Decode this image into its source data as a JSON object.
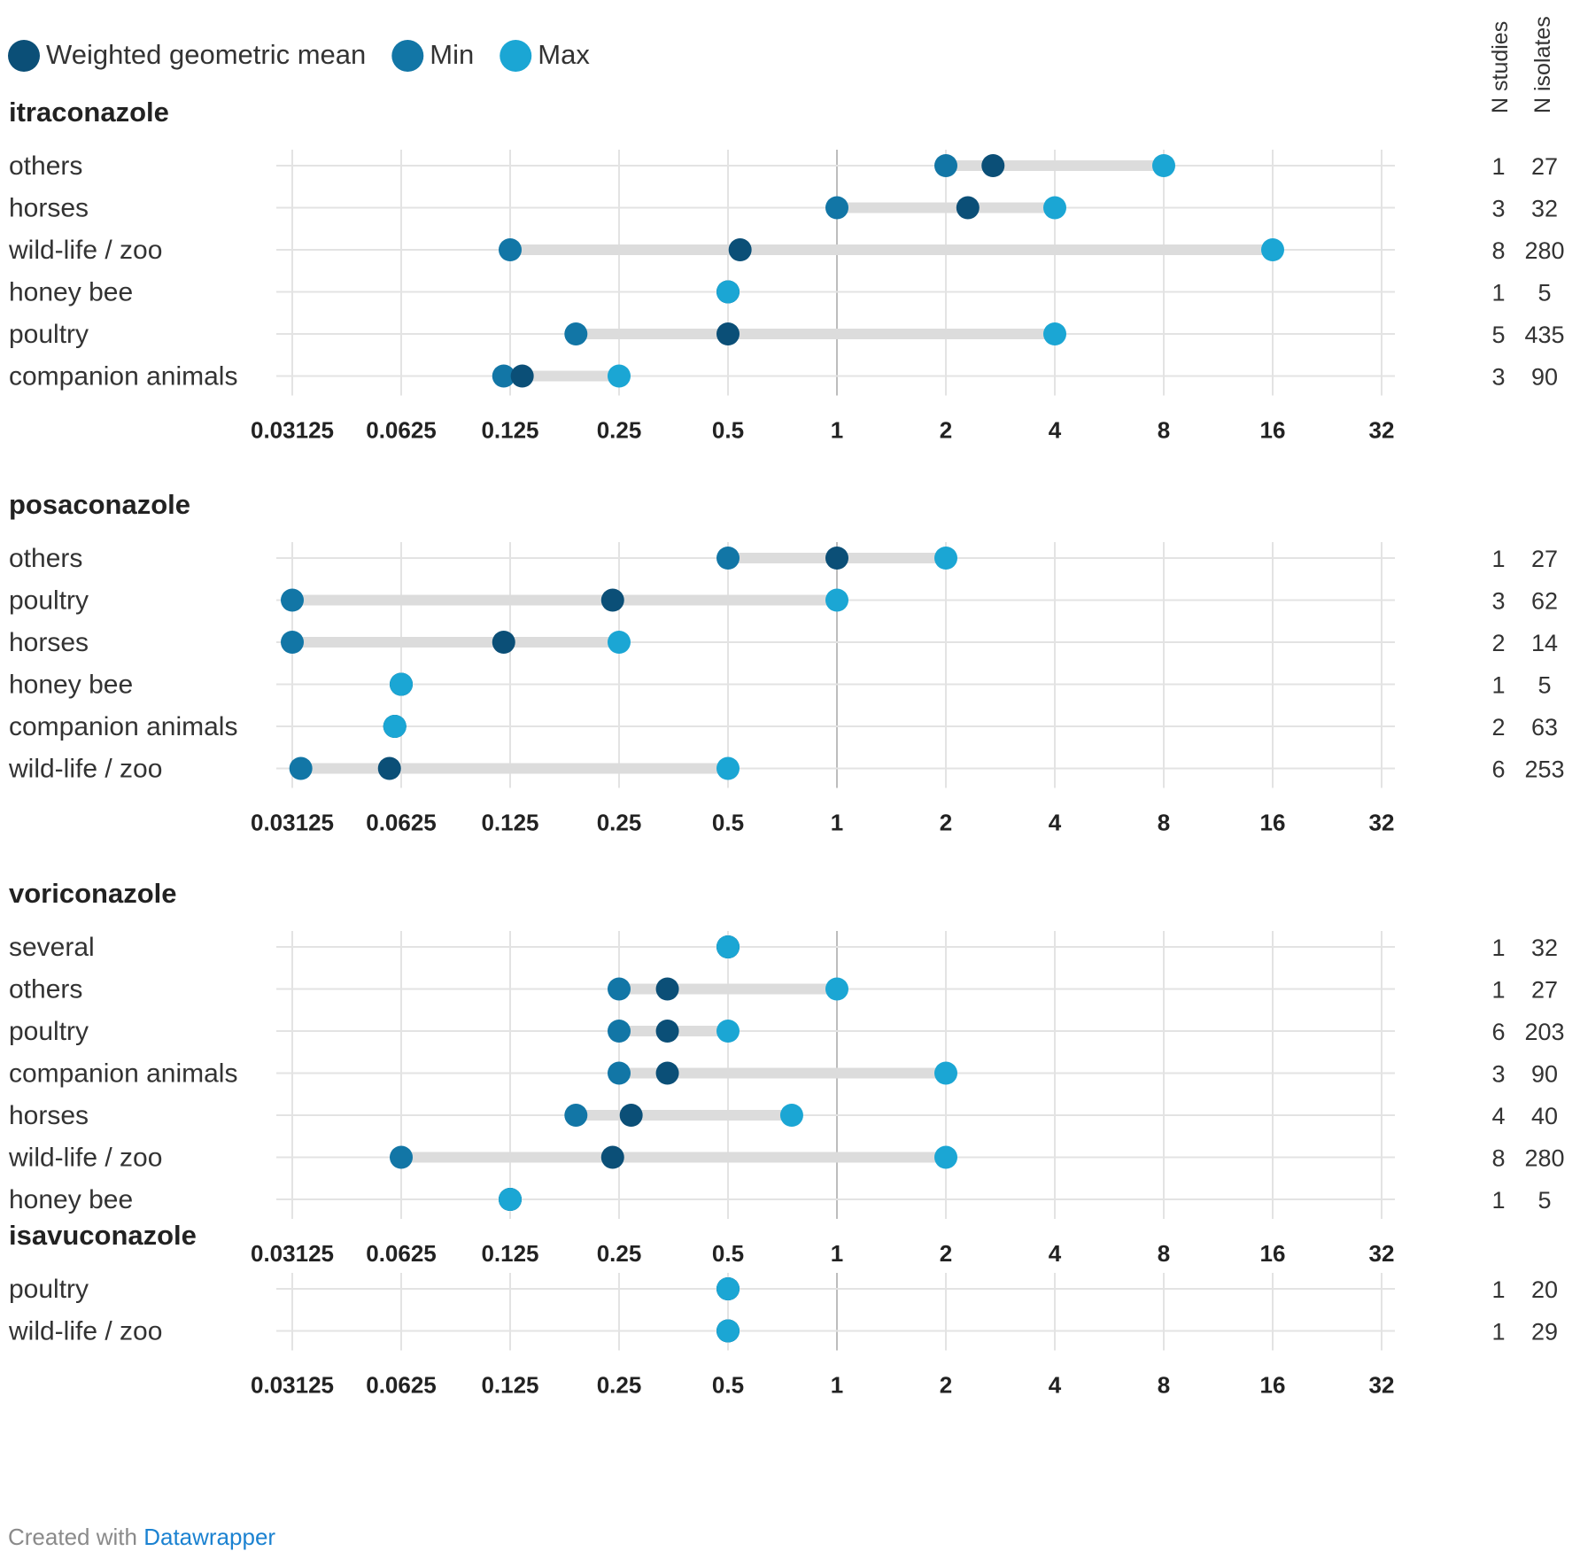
{
  "legend": {
    "items": [
      {
        "label": "Weighted geometric mean",
        "color": "#0b4f77"
      },
      {
        "label": "Min",
        "color": "#1276a6"
      },
      {
        "label": "Max",
        "color": "#1ba6d4"
      }
    ]
  },
  "columns": {
    "n_studies": "N studies",
    "n_isolates": "N isolates"
  },
  "footer": {
    "prefix": "Created with",
    "link": "Datawrapper"
  },
  "colors": {
    "mean": "#0b4f77",
    "min": "#1276a6",
    "max": "#1ba6d4",
    "bar": "#dcdcdc",
    "grid": "#e3e3e3"
  },
  "chart_data": {
    "type": "range-dot",
    "scale": "log2",
    "x_ticks": [
      0.03125,
      0.0625,
      0.125,
      0.25,
      0.5,
      1,
      2,
      4,
      8,
      16,
      32
    ],
    "x_tick_labels": [
      "0.03125",
      "0.0625",
      "0.125",
      "0.25",
      "0.5",
      "1",
      "2",
      "4",
      "8",
      "16",
      "32"
    ],
    "xlim": [
      0.03125,
      32
    ],
    "series": [
      "Weighted geometric mean",
      "Min",
      "Max"
    ],
    "panels": [
      {
        "title": "itraconazole",
        "rows": [
          {
            "label": "others",
            "min": 2,
            "mean": 2.7,
            "max": 8,
            "n_studies": "1",
            "n_isolates": "27"
          },
          {
            "label": "horses",
            "min": 1,
            "mean": 2.3,
            "max": 4,
            "n_studies": "3",
            "n_isolates": "32"
          },
          {
            "label": "wild-life / zoo",
            "min": 0.125,
            "mean": 0.54,
            "max": 16,
            "n_studies": "8",
            "n_isolates": "280"
          },
          {
            "label": "honey bee",
            "min": 0.5,
            "mean": 0.5,
            "max": 0.5,
            "n_studies": "1",
            "n_isolates": "5"
          },
          {
            "label": "poultry",
            "min": 0.19,
            "mean": 0.5,
            "max": 4,
            "n_studies": "5",
            "n_isolates": "435"
          },
          {
            "label": "companion animals",
            "min": 0.12,
            "mean": 0.135,
            "max": 0.25,
            "n_studies": "3",
            "n_isolates": "90"
          }
        ]
      },
      {
        "title": "posaconazole",
        "rows": [
          {
            "label": "others",
            "min": 0.5,
            "mean": 1,
            "max": 2,
            "n_studies": "1",
            "n_isolates": "27"
          },
          {
            "label": "poultry",
            "min": 0.03125,
            "mean": 0.24,
            "max": 1,
            "n_studies": "3",
            "n_isolates": "62"
          },
          {
            "label": "horses",
            "min": 0.03125,
            "mean": 0.12,
            "max": 0.25,
            "n_studies": "2",
            "n_isolates": "14"
          },
          {
            "label": "honey bee",
            "min": 0.0625,
            "mean": 0.0625,
            "max": 0.0625,
            "n_studies": "1",
            "n_isolates": "5"
          },
          {
            "label": "companion animals",
            "min": 0.06,
            "mean": 0.06,
            "max": 0.06,
            "n_studies": "2",
            "n_isolates": "63"
          },
          {
            "label": "wild-life / zoo",
            "min": 0.033,
            "mean": 0.058,
            "max": 0.5,
            "n_studies": "6",
            "n_isolates": "253"
          }
        ]
      },
      {
        "title": "voriconazole",
        "rows": [
          {
            "label": "several",
            "min": 0.5,
            "mean": 0.5,
            "max": 0.5,
            "n_studies": "1",
            "n_isolates": "32"
          },
          {
            "label": "others",
            "min": 0.25,
            "mean": 0.34,
            "max": 1,
            "n_studies": "1",
            "n_isolates": "27"
          },
          {
            "label": "poultry",
            "min": 0.25,
            "mean": 0.34,
            "max": 0.5,
            "n_studies": "6",
            "n_isolates": "203"
          },
          {
            "label": "companion animals",
            "min": 0.25,
            "mean": 0.34,
            "max": 2,
            "n_studies": "3",
            "n_isolates": "90"
          },
          {
            "label": "horses",
            "min": 0.19,
            "mean": 0.27,
            "max": 0.75,
            "n_studies": "4",
            "n_isolates": "40"
          },
          {
            "label": "wild-life / zoo",
            "min": 0.0625,
            "mean": 0.24,
            "max": 2,
            "n_studies": "8",
            "n_isolates": "280"
          },
          {
            "label": "honey bee",
            "min": 0.125,
            "mean": 0.125,
            "max": 0.125,
            "n_studies": "1",
            "n_isolates": "5"
          }
        ]
      },
      {
        "title": "isavuconazole",
        "rows": [
          {
            "label": "poultry",
            "min": 0.5,
            "mean": 0.5,
            "max": 0.5,
            "n_studies": "1",
            "n_isolates": "20"
          },
          {
            "label": "wild-life / zoo",
            "min": 0.5,
            "mean": 0.5,
            "max": 0.5,
            "n_studies": "1",
            "n_isolates": "29"
          }
        ]
      }
    ]
  }
}
